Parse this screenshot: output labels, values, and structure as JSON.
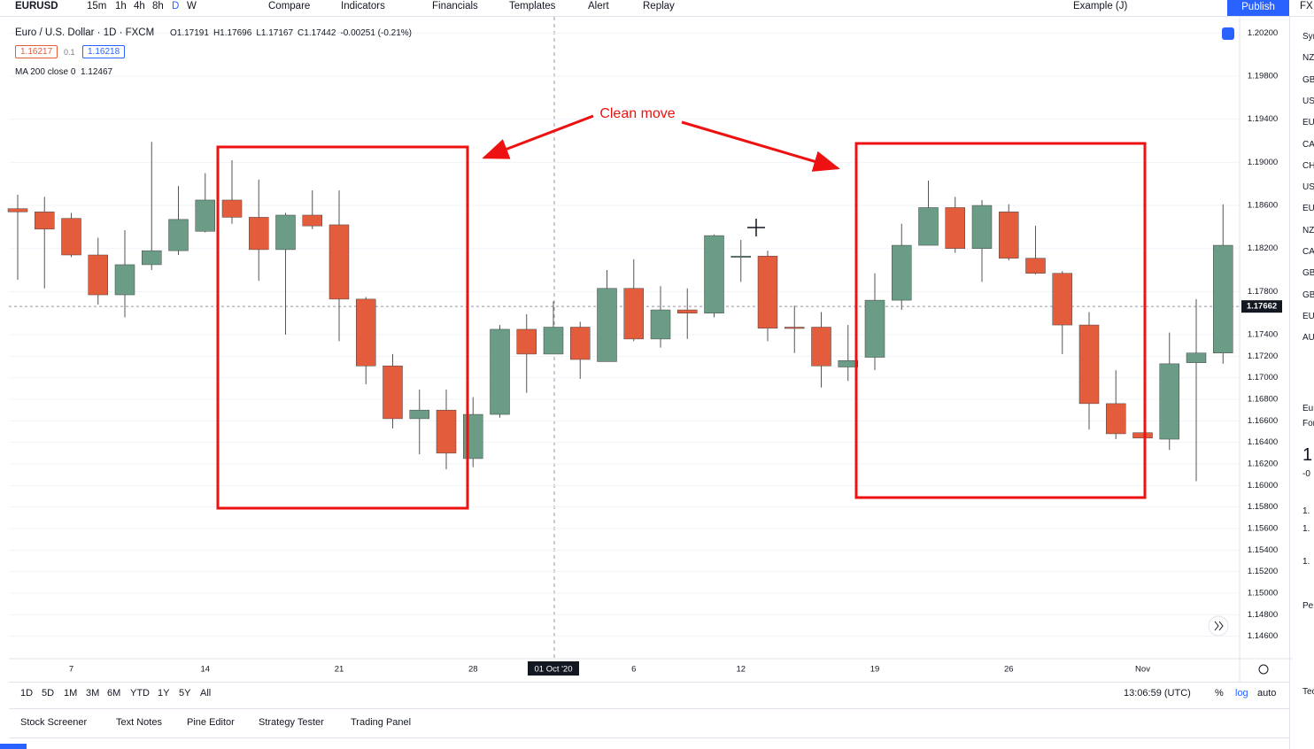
{
  "toolbar": {
    "symbol": "EURUSD",
    "intervals": [
      "15m",
      "1h",
      "4h",
      "8h",
      "D",
      "W"
    ],
    "items": [
      "Compare",
      "Indicators",
      "Financials",
      "Templates",
      "Alert",
      "Replay"
    ],
    "layout": "Example (J)",
    "publish": "Publish",
    "right_cut": "FX"
  },
  "legend": {
    "name": "Euro / U.S. Dollar · 1D · FXCM",
    "ohlc": [
      "O1.17191",
      "H1.17696",
      "L1.17167",
      "C1.17442",
      "-0.00251 (-0.21%)"
    ],
    "bid": "1.16217",
    "spread": "0.1",
    "ask": "1.16218",
    "ma": "MA 200 close 0",
    "ma_value": "1.12467"
  },
  "chart_data": {
    "type": "candlestick",
    "annotation": "Clean move",
    "categories": [
      null,
      null,
      "7",
      null,
      null,
      null,
      null,
      "14",
      null,
      null,
      null,
      null,
      "21",
      null,
      null,
      null,
      null,
      "28",
      null,
      null,
      "01 Oct '20",
      null,
      null,
      "6",
      null,
      null,
      null,
      "12",
      null,
      null,
      null,
      null,
      "19",
      null,
      null,
      null,
      null,
      "26",
      null,
      null,
      null,
      null,
      "Nov",
      null,
      null,
      null
    ],
    "open": [
      1.1857,
      1.1854,
      1.1848,
      1.1814,
      1.1777,
      1.1805,
      1.1818,
      1.1836,
      1.1865,
      1.1849,
      1.1819,
      1.1851,
      1.1842,
      1.1773,
      1.1711,
      1.1662,
      1.167,
      1.1625,
      1.1666,
      1.1745,
      1.1722,
      1.1747,
      1.1715,
      1.1783,
      1.1736,
      1.1763,
      1.176,
      1.1812,
      1.1813,
      1.1747,
      1.1747,
      1.171,
      1.1719,
      1.1772,
      1.1823,
      1.1858,
      1.182,
      1.1854,
      1.1811,
      1.1797,
      1.1749,
      1.1676,
      1.1649,
      1.1643,
      1.1714,
      1.1723
    ],
    "high": [
      1.187,
      1.1868,
      1.1853,
      1.183,
      1.1837,
      1.1919,
      1.1878,
      1.189,
      1.1902,
      1.1884,
      1.1853,
      1.1874,
      1.1874,
      1.1775,
      1.1722,
      1.1689,
      1.1689,
      1.1682,
      1.1749,
      1.1759,
      1.1771,
      1.1752,
      1.18,
      1.181,
      1.1785,
      1.1783,
      1.1833,
      1.1828,
      1.1818,
      1.1767,
      1.1761,
      1.1749,
      1.1797,
      1.1843,
      1.1883,
      1.1868,
      1.1865,
      1.1861,
      1.1841,
      1.1799,
      1.1761,
      1.1707,
      1.1649,
      1.1742,
      1.1773,
      1.1861
    ],
    "low": [
      1.1791,
      1.1783,
      1.1812,
      1.1768,
      1.1756,
      1.18,
      1.1814,
      1.1835,
      1.1843,
      1.179,
      1.174,
      1.1838,
      1.1734,
      1.1694,
      1.1653,
      1.1629,
      1.1615,
      1.1617,
      1.1663,
      1.1686,
      1.1722,
      1.1699,
      1.1715,
      1.1734,
      1.1728,
      1.1736,
      1.1756,
      1.1789,
      1.1734,
      1.1723,
      1.1691,
      1.1697,
      1.1707,
      1.1763,
      1.1823,
      1.1816,
      1.1789,
      1.1809,
      1.1796,
      1.1722,
      1.1652,
      1.1643,
      1.1644,
      1.1633,
      1.1604,
      1.1713
    ],
    "close": [
      1.1854,
      1.1838,
      1.1814,
      1.1777,
      1.1805,
      1.1818,
      1.1847,
      1.1865,
      1.1849,
      1.1819,
      1.1851,
      1.1841,
      1.1773,
      1.1711,
      1.1662,
      1.167,
      1.163,
      1.1666,
      1.1745,
      1.1722,
      1.1747,
      1.1717,
      1.1783,
      1.1736,
      1.1763,
      1.176,
      1.1832,
      1.1813,
      1.1746,
      1.1746,
      1.1711,
      1.1716,
      1.1772,
      1.1823,
      1.1858,
      1.182,
      1.186,
      1.1811,
      1.1797,
      1.1749,
      1.1676,
      1.1648,
      1.1644,
      1.1713,
      1.1723,
      1.1823
    ],
    "up_color": "#6b9c86",
    "down_color": "#e35d3c",
    "ylim": [
      1.144,
      1.2031
    ],
    "yticks": [
      {
        "value": 1.202,
        "label": "1.20200"
      },
      {
        "value": 1.198,
        "label": "1.19800"
      },
      {
        "value": 1.194,
        "label": "1.19400"
      },
      {
        "value": 1.19,
        "label": "1.19000"
      },
      {
        "value": 1.186,
        "label": "1.18600"
      },
      {
        "value": 1.182,
        "label": "1.18200"
      },
      {
        "value": 1.178,
        "label": "1.17800"
      },
      {
        "value": 1.174,
        "label": "1.17400"
      },
      {
        "value": 1.172,
        "label": "1.17200"
      },
      {
        "value": 1.17,
        "label": "1.17000"
      },
      {
        "value": 1.168,
        "label": "1.16800"
      },
      {
        "value": 1.166,
        "label": "1.16600"
      },
      {
        "value": 1.164,
        "label": "1.16400"
      },
      {
        "value": 1.162,
        "label": "1.16200"
      },
      {
        "value": 1.16,
        "label": "1.16000"
      },
      {
        "value": 1.158,
        "label": "1.15800"
      },
      {
        "value": 1.156,
        "label": "1.15600"
      },
      {
        "value": 1.154,
        "label": "1.15400"
      },
      {
        "value": 1.152,
        "label": "1.15200"
      },
      {
        "value": 1.15,
        "label": "1.15000"
      },
      {
        "value": 1.148,
        "label": "1.14800"
      },
      {
        "value": 1.146,
        "label": "1.14600"
      }
    ],
    "last_price": {
      "value": 1.17662,
      "label": "1.17662"
    },
    "grid": true
  },
  "bottom_bar": {
    "ranges": [
      "1D",
      "5D",
      "1M",
      "3M",
      "6M",
      "YTD",
      "1Y",
      "5Y",
      "All"
    ],
    "time": "13:06:59 (UTC)",
    "options": [
      "%",
      "log",
      "auto"
    ]
  },
  "tabs": [
    "Stock Screener",
    "Text Notes",
    "Pine Editor",
    "Strategy Tester",
    "Trading Panel"
  ],
  "side_panel": {
    "watchlist": [
      "Syr",
      "NZ",
      "GB",
      "US",
      "EU",
      "CA",
      "CH",
      "US",
      "EU",
      "NZ",
      "CA",
      "GB",
      "GB",
      "EU",
      "AU"
    ],
    "detail": [
      "Eur",
      "For",
      "1",
      "-0",
      "1.",
      "1.",
      "1.",
      "Per",
      "Tec"
    ]
  }
}
